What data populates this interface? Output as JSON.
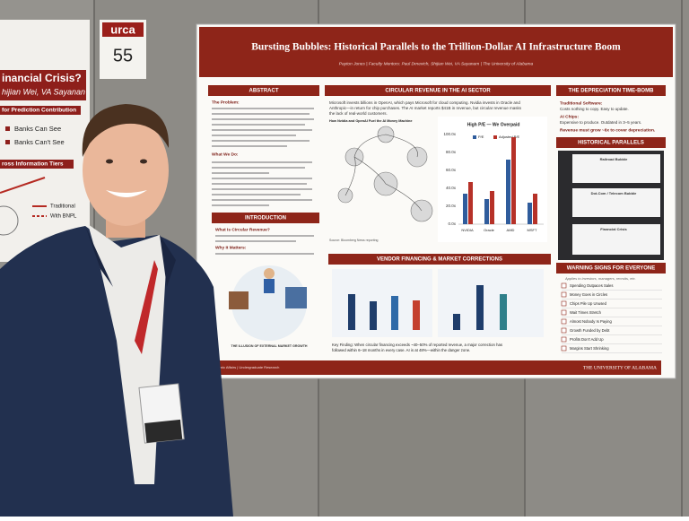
{
  "left_poster": {
    "title": "inancial Crisis?",
    "subtitle": "hijian Wei, VA Sayanan",
    "band1": "for Prediction Contribution",
    "item1": "Banks Can See",
    "item2": "Banks Can't See",
    "band2": "ross Information Tiers",
    "legend1": "Traditional",
    "legend2": "With BNPL"
  },
  "badge": {
    "logo": "urca",
    "number": "55"
  },
  "poster": {
    "title": "Bursting Bubbles: Historical Parallels to the Trillion-Dollar AI Infrastructure Boom",
    "byline": "Payton Jones  |  Faculty Mentors: Paul Drnevich, Shijian Wei, VA Sayanam  |  The University of Alabama",
    "abstract": {
      "heading": "ABSTRACT",
      "problem": "The Problem:",
      "what_we_do": "What We Do:"
    },
    "circular": {
      "heading": "CIRCULAR REVENUE IN THE AI SECTOR",
      "text": [
        "Microsoft invests billions in OpenAI, which pays Microsoft for cloud computing. Nvidia invests in Oracle and",
        "Anthropic—in return for chip purchases. The AI market reports $41B in revenue, but circular revenue masks",
        "the lack of real-world customers."
      ],
      "diagram_title": "How Nvidia and OpenAI Fuel the AI Money Machine",
      "source": "Source: Bloomberg News reporting"
    },
    "chart": {
      "title": "High P/E — We Overpaid",
      "legend": [
        "P/E",
        "Adjusted P/E"
      ],
      "categories": [
        "NVIDIA",
        "Oracle",
        "AMD",
        "MSFT"
      ],
      "yticks": [
        "100.0x",
        "80.0x",
        "60.0x",
        "40.0x",
        "20.0x",
        "0.0x"
      ]
    },
    "depreciation": {
      "heading": "THE DEPRECIATION TIME-BOMB",
      "software": "Traditional Software:",
      "software_text": "Costs nothing to copy. Easy to update.",
      "chips": "AI Chips:",
      "chips_text": "Expensive to produce. Outdated in 3–5 years.",
      "note": "Revenue must grow ~6x to cover depreciation."
    },
    "parallels": {
      "heading": "HISTORICAL PARALLELS",
      "cards": [
        "Railroad Bubble",
        "Dot-Com / Telecom Bubble",
        "Financial Crisis"
      ]
    },
    "introduction": {
      "heading": "INTRODUCTION",
      "q1": "What Is Circular Revenue?",
      "q2": "Why It Matters:",
      "caption": "THE ILLUSION OF EXTERNAL MARKET GROWTH"
    },
    "vendor": {
      "heading": "VENDOR FINANCING & MARKET CORRECTIONS",
      "key_finding": [
        "Key Finding: When circular financing exceeds ~40–50% of reported revenue, a major correction has",
        "followed within 6–18 months in every case. AI is at 48%—within the danger zone."
      ]
    },
    "warnings": {
      "heading": "WARNING SIGNS FOR EVERYONE",
      "subtitle": "Applies to investors, managers, recruits, etc.",
      "items": [
        "Spending Outpaces Sales",
        "Money Goes in Circles",
        "Chips Pile Up Unused",
        "Wait Times Stretch",
        "Almost Nobody Is Paying",
        "Growth Funded by Debt",
        "Profits Don't Add Up",
        "Margins Start Shrinking"
      ]
    },
    "footer_left": "Tri Academic Affairs  |  Undergraduate Research",
    "footer": "THE UNIVERSITY OF ALABAMA"
  }
}
